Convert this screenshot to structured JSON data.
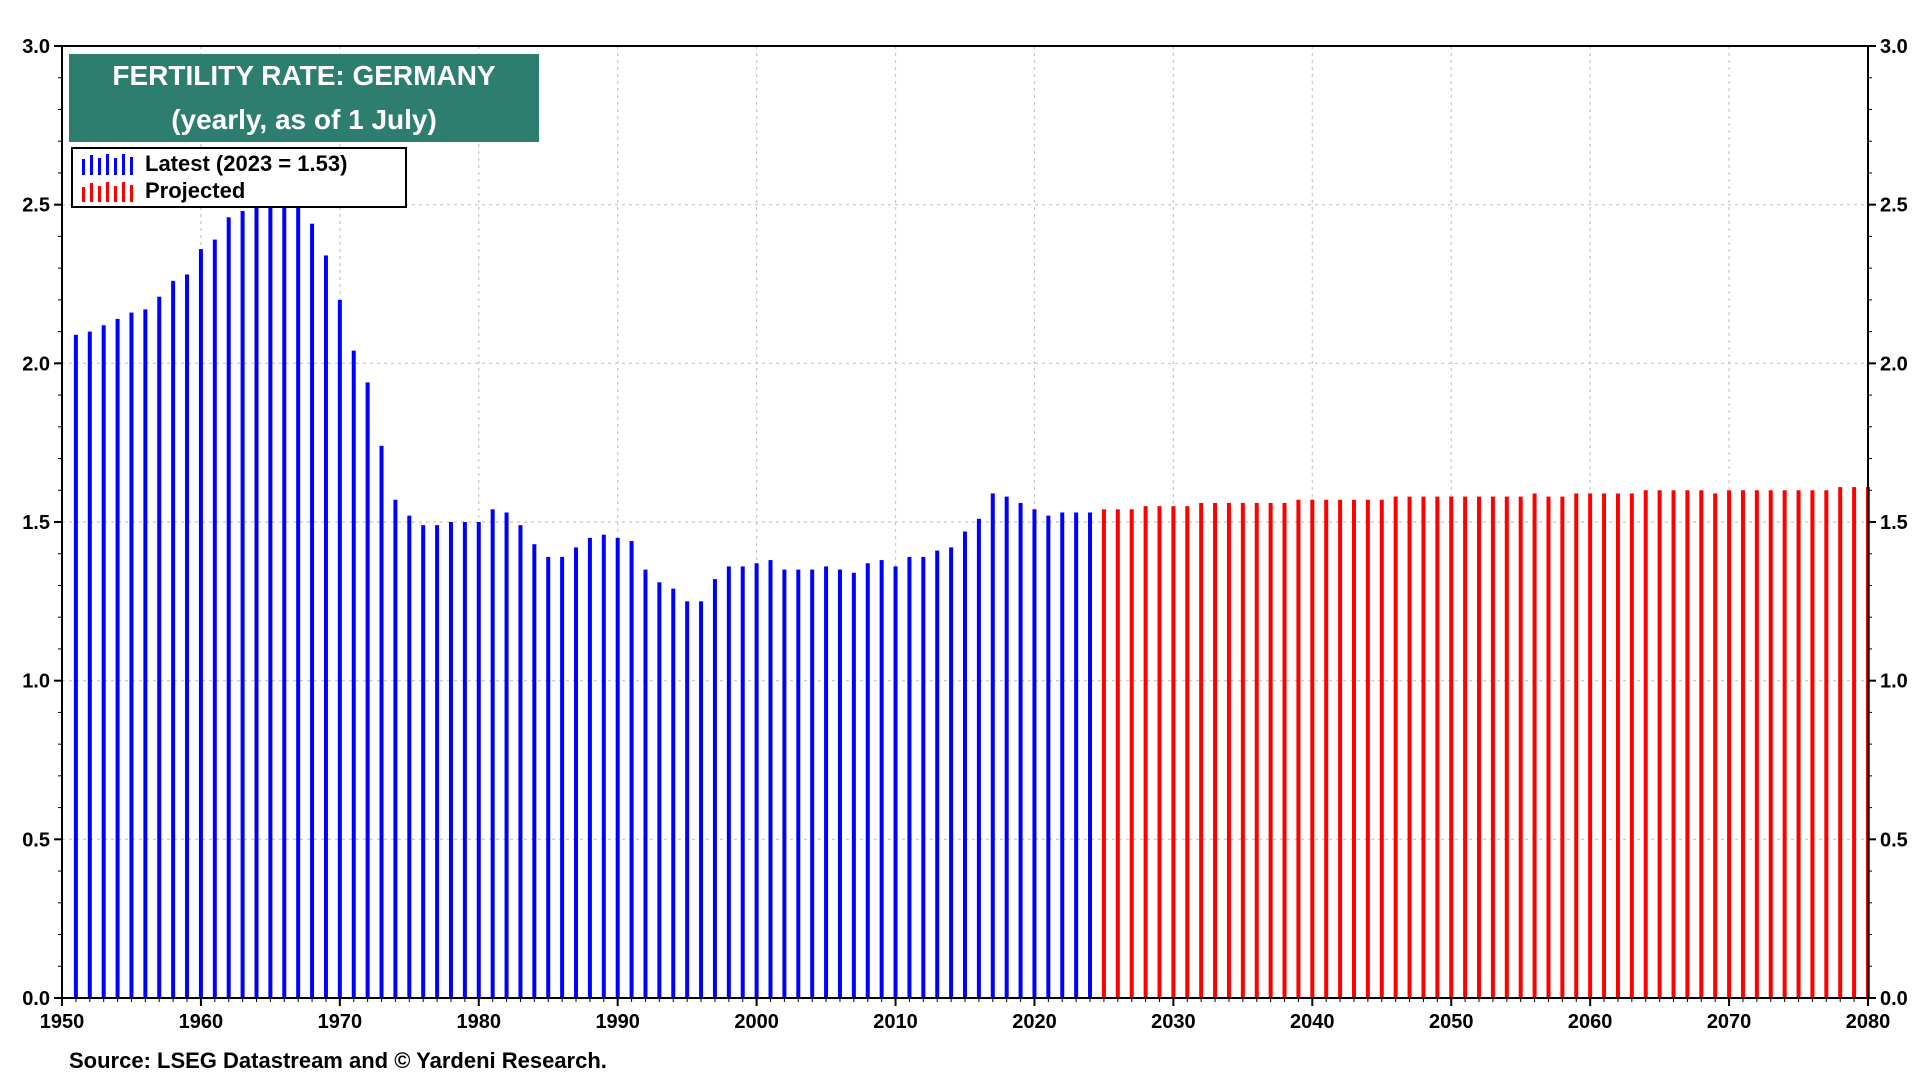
{
  "title": {
    "line1": "FERTILITY RATE: GERMANY",
    "line2": "(yearly, as of 1 July)"
  },
  "source": "Source: LSEG Datastream and © Yardeni Research.",
  "colors": {
    "latest": "#0000ff",
    "projected": "#ff0000",
    "title_bg": "#2e7e6f",
    "grid": "#c8c8c8"
  },
  "chart_data": {
    "type": "bar",
    "x_range": [
      1950,
      2080
    ],
    "y_range": [
      0,
      3.0
    ],
    "y_ticks": [
      "0.0",
      "0.5",
      "1.0",
      "1.5",
      "2.0",
      "2.5",
      "3.0"
    ],
    "x_ticks": [
      "1950",
      "1960",
      "1970",
      "1980",
      "1990",
      "2000",
      "2010",
      "2020",
      "2030",
      "2040",
      "2050",
      "2060",
      "2070",
      "2080"
    ],
    "grid": true,
    "legend_position": "top-left",
    "series": [
      {
        "name": "Latest (2023 = 1.53)",
        "color": "#0000ff",
        "x": [
          1951,
          1952,
          1953,
          1954,
          1955,
          1956,
          1957,
          1958,
          1959,
          1960,
          1961,
          1962,
          1963,
          1964,
          1965,
          1966,
          1967,
          1968,
          1969,
          1970,
          1971,
          1972,
          1973,
          1974,
          1975,
          1976,
          1977,
          1978,
          1979,
          1980,
          1981,
          1982,
          1983,
          1984,
          1985,
          1986,
          1987,
          1988,
          1989,
          1990,
          1991,
          1992,
          1993,
          1994,
          1995,
          1996,
          1997,
          1998,
          1999,
          2000,
          2001,
          2002,
          2003,
          2004,
          2005,
          2006,
          2007,
          2008,
          2009,
          2010,
          2011,
          2012,
          2013,
          2014,
          2015,
          2016,
          2017,
          2018,
          2019,
          2020,
          2021,
          2022,
          2023,
          2024
        ],
        "values": [
          2.09,
          2.1,
          2.12,
          2.14,
          2.16,
          2.17,
          2.21,
          2.26,
          2.28,
          2.36,
          2.39,
          2.46,
          2.48,
          2.5,
          2.51,
          2.5,
          2.49,
          2.44,
          2.34,
          2.2,
          2.04,
          1.94,
          1.74,
          1.57,
          1.52,
          1.49,
          1.49,
          1.5,
          1.5,
          1.5,
          1.54,
          1.53,
          1.49,
          1.43,
          1.39,
          1.39,
          1.42,
          1.45,
          1.46,
          1.45,
          1.44,
          1.35,
          1.31,
          1.29,
          1.25,
          1.25,
          1.32,
          1.36,
          1.36,
          1.37,
          1.38,
          1.35,
          1.35,
          1.35,
          1.36,
          1.35,
          1.34,
          1.37,
          1.38,
          1.36,
          1.39,
          1.39,
          1.41,
          1.42,
          1.47,
          1.51,
          1.59,
          1.58,
          1.56,
          1.54,
          1.52,
          1.53,
          1.53,
          1.53
        ]
      },
      {
        "name": "Projected",
        "color": "#ff0000",
        "x": [
          2025,
          2026,
          2027,
          2028,
          2029,
          2030,
          2031,
          2032,
          2033,
          2034,
          2035,
          2036,
          2037,
          2038,
          2039,
          2040,
          2041,
          2042,
          2043,
          2044,
          2045,
          2046,
          2047,
          2048,
          2049,
          2050,
          2051,
          2052,
          2053,
          2054,
          2055,
          2056,
          2057,
          2058,
          2059,
          2060,
          2061,
          2062,
          2063,
          2064,
          2065,
          2066,
          2067,
          2068,
          2069,
          2070,
          2071,
          2072,
          2073,
          2074,
          2075,
          2076,
          2077,
          2078,
          2079,
          2080
        ],
        "values": [
          1.54,
          1.54,
          1.54,
          1.55,
          1.55,
          1.55,
          1.55,
          1.56,
          1.56,
          1.56,
          1.56,
          1.56,
          1.56,
          1.56,
          1.57,
          1.57,
          1.57,
          1.57,
          1.57,
          1.57,
          1.57,
          1.58,
          1.58,
          1.58,
          1.58,
          1.58,
          1.58,
          1.58,
          1.58,
          1.58,
          1.58,
          1.59,
          1.58,
          1.58,
          1.59,
          1.59,
          1.59,
          1.59,
          1.59,
          1.6,
          1.6,
          1.6,
          1.6,
          1.6,
          1.59,
          1.6,
          1.6,
          1.6,
          1.6,
          1.6,
          1.6,
          1.6,
          1.6,
          1.61,
          1.61,
          1.61
        ]
      }
    ]
  }
}
